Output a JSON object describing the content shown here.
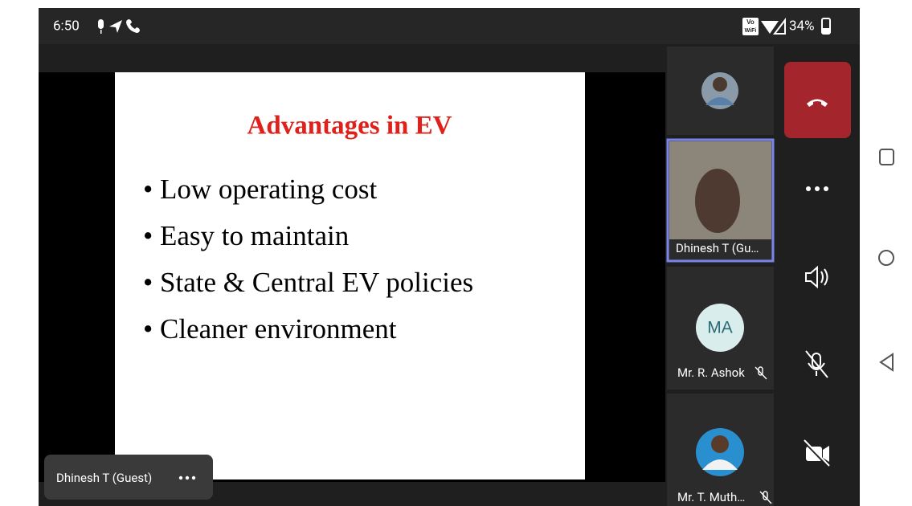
{
  "status": {
    "time": "6:50",
    "badge_top": "Vo",
    "badge_bottom": "WiFi",
    "battery": "34%"
  },
  "slide": {
    "title": "Advantages in EV",
    "bullets": [
      "• Low operating cost",
      "• Easy to maintain",
      "• State & Central EV policies",
      "• Cleaner environment"
    ]
  },
  "presenter": {
    "name": "Dhinesh T (Guest)"
  },
  "participants": [
    {
      "name": "Dhinesh T (Gu…"
    },
    {
      "initials": "MA",
      "name": "Mr. R. Ashok"
    },
    {
      "name": "Mr. T. Muth…"
    }
  ]
}
